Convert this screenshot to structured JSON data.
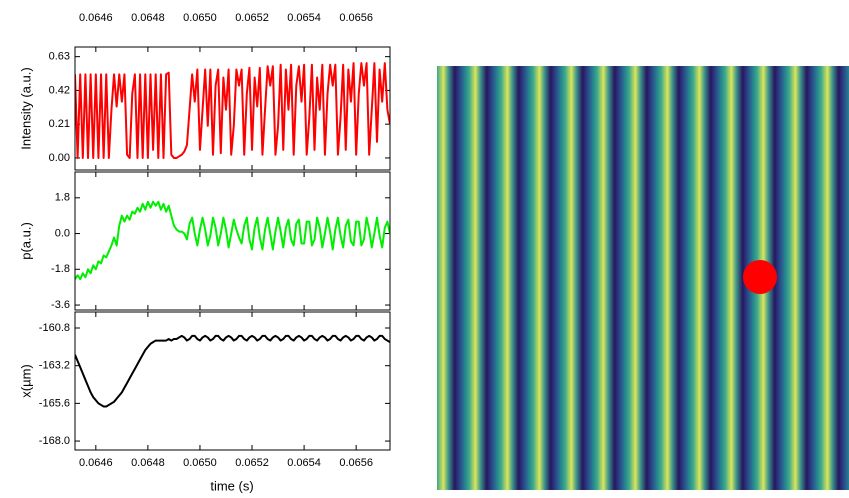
{
  "chart_data": {
    "type": "line",
    "x": [
      0.06452,
      0.06453,
      0.06454,
      0.06455,
      0.06456,
      0.06457,
      0.06458,
      0.06459,
      0.0646,
      0.06461,
      0.06462,
      0.06463,
      0.06464,
      0.06465,
      0.06466,
      0.06467,
      0.06468,
      0.06469,
      0.0647,
      0.06471,
      0.06472,
      0.06473,
      0.06474,
      0.06475,
      0.06476,
      0.06477,
      0.06478,
      0.06479,
      0.0648,
      0.06481,
      0.06482,
      0.06483,
      0.06484,
      0.06485,
      0.06486,
      0.06487,
      0.06488,
      0.06489,
      0.0649,
      0.06491,
      0.06492,
      0.06493,
      0.06494,
      0.06495,
      0.06496,
      0.06497,
      0.06498,
      0.06499,
      0.065,
      0.06501,
      0.06502,
      0.06503,
      0.06504,
      0.06505,
      0.06506,
      0.06507,
      0.06508,
      0.06509,
      0.0651,
      0.06511,
      0.06512,
      0.06513,
      0.06514,
      0.06515,
      0.06516,
      0.06517,
      0.06518,
      0.06519,
      0.0652,
      0.06521,
      0.06522,
      0.06523,
      0.06524,
      0.06525,
      0.06526,
      0.06527,
      0.06528,
      0.06529,
      0.0653,
      0.06531,
      0.06532,
      0.06533,
      0.06534,
      0.06535,
      0.06536,
      0.06537,
      0.06538,
      0.06539,
      0.0654,
      0.06541,
      0.06542,
      0.06543,
      0.06544,
      0.06545,
      0.06546,
      0.06547,
      0.06548,
      0.06549,
      0.0655,
      0.06551,
      0.06552,
      0.06553,
      0.06554,
      0.06555,
      0.06556,
      0.06557,
      0.06558,
      0.06559,
      0.0656,
      0.06561,
      0.06562,
      0.06563,
      0.06564,
      0.06565,
      0.06566,
      0.06567,
      0.06568,
      0.06569,
      0.0657,
      0.06571,
      0.06572,
      0.06573
    ],
    "xlim": [
      0.06452,
      0.06573
    ],
    "xticks": [
      0.0646,
      0.0648,
      {
        "value": 0.065,
        "label": "0.0650"
      },
      0.0652,
      0.0654,
      0.0656
    ],
    "xlabel": "time (s)",
    "panels": [
      {
        "ylabel": "Intensity (a.u.)",
        "ylim": [
          -0.075,
          0.69
        ],
        "yticks": [
          {
            "value": 0,
            "label": "0.00"
          },
          0.21,
          0.42,
          0.63
        ],
        "series": [
          {
            "color": "#ff0000",
            "values": [
              0.52,
              0.0,
              0.52,
              0.0,
              0.52,
              0.0,
              0.52,
              0.0,
              0.52,
              0.0,
              0.52,
              0.0,
              0.52,
              0.0,
              0.3,
              0.52,
              0.32,
              0.52,
              0.35,
              0.52,
              0.02,
              0.0,
              0.4,
              0.52,
              0.0,
              0.52,
              0.0,
              0.52,
              0.0,
              0.52,
              0.05,
              0.52,
              0.0,
              0.52,
              0.0,
              0.52,
              0.53,
              0.02,
              0.0,
              0.0,
              0.01,
              0.02,
              0.04,
              0.08,
              0.3,
              0.52,
              0.35,
              0.55,
              0.05,
              0.3,
              0.55,
              0.2,
              0.55,
              0.02,
              0.45,
              0.55,
              0.03,
              0.5,
              0.3,
              0.55,
              0.02,
              0.2,
              0.55,
              0.45,
              0.55,
              0.02,
              0.4,
              0.56,
              0.05,
              0.5,
              0.32,
              0.56,
              0.02,
              0.3,
              0.57,
              0.45,
              0.57,
              0.02,
              0.2,
              0.58,
              0.05,
              0.55,
              0.3,
              0.58,
              0.02,
              0.45,
              0.57,
              0.35,
              0.58,
              0.02,
              0.25,
              0.58,
              0.05,
              0.5,
              0.3,
              0.58,
              0.02,
              0.4,
              0.58,
              0.45,
              0.58,
              0.02,
              0.25,
              0.58,
              0.05,
              0.55,
              0.35,
              0.59,
              0.02,
              0.4,
              0.59,
              0.45,
              0.59,
              0.02,
              0.3,
              0.59,
              0.1,
              0.55,
              0.35,
              0.59,
              0.3,
              0.21
            ]
          }
        ]
      },
      {
        "ylabel": "p(a.u.)",
        "ylim": [
          -3.85,
          3.1
        ],
        "yticks": [
          -3.6,
          -1.8,
          {
            "value": 0,
            "label": "0.0"
          },
          1.8
        ],
        "series": [
          {
            "color": "#00ee00",
            "values": [
              -2.3,
              -2.1,
              -2.3,
              -2.0,
              -2.2,
              -1.8,
              -2.0,
              -1.6,
              -1.8,
              -1.4,
              -1.5,
              -1.1,
              -1.2,
              -0.9,
              -0.6,
              -0.2,
              -0.6,
              0.4,
              0.9,
              0.6,
              0.9,
              0.7,
              1.1,
              1.0,
              1.3,
              1.1,
              1.5,
              1.2,
              1.6,
              1.3,
              1.6,
              1.4,
              1.6,
              1.2,
              1.5,
              1.1,
              1.4,
              0.9,
              0.4,
              0.2,
              0.1,
              0.1,
              0.0,
              -0.3,
              0.5,
              0.8,
              0.0,
              -0.6,
              0.2,
              0.8,
              0.2,
              -0.6,
              -0.1,
              0.8,
              0.3,
              -0.6,
              0.0,
              0.8,
              0.2,
              -0.7,
              0.0,
              0.7,
              0.2,
              -0.2,
              -0.5,
              0.4,
              0.8,
              -0.3,
              -0.8,
              0.3,
              0.8,
              -0.2,
              -0.8,
              0.2,
              0.8,
              0.0,
              -0.8,
              0.1,
              0.8,
              0.1,
              -0.7,
              0.3,
              0.7,
              -0.3,
              -0.6,
              0.5,
              0.7,
              -0.5,
              -0.5,
              0.6,
              0.6,
              -0.6,
              -0.3,
              0.8,
              0.3,
              -0.7,
              0.0,
              0.8,
              0.1,
              -0.8,
              0.2,
              0.8,
              -0.1,
              -0.7,
              0.4,
              0.7,
              -0.4,
              -0.6,
              0.6,
              0.6,
              -0.6,
              -0.3,
              0.8,
              0.2,
              -0.7,
              0.0,
              0.8,
              -0.1,
              -0.7,
              0.3,
              0.6,
              0.0
            ]
          }
        ]
      },
      {
        "ylabel": "x(µm)",
        "ylim": [
          -168.57,
          -159.78
        ],
        "yticks": [
          {
            "value": -168,
            "label": "-168.0"
          },
          -165.6,
          -163.2,
          -160.8
        ],
        "series": [
          {
            "color": "#000000",
            "values": [
              -162.5,
              -162.9,
              -163.3,
              -163.7,
              -164.1,
              -164.5,
              -164.9,
              -165.2,
              -165.4,
              -165.6,
              -165.7,
              -165.8,
              -165.8,
              -165.7,
              -165.6,
              -165.5,
              -165.3,
              -165.1,
              -164.9,
              -164.6,
              -164.3,
              -164.0,
              -163.7,
              -163.4,
              -163.1,
              -162.8,
              -162.5,
              -162.2,
              -162.0,
              -161.8,
              -161.7,
              -161.6,
              -161.6,
              -161.6,
              -161.6,
              -161.6,
              -161.5,
              -161.6,
              -161.5,
              -161.5,
              -161.4,
              -161.3,
              -161.4,
              -161.6,
              -161.5,
              -161.3,
              -161.3,
              -161.5,
              -161.6,
              -161.4,
              -161.3,
              -161.4,
              -161.6,
              -161.5,
              -161.3,
              -161.3,
              -161.5,
              -161.6,
              -161.4,
              -161.3,
              -161.4,
              -161.6,
              -161.5,
              -161.3,
              -161.3,
              -161.5,
              -161.6,
              -161.4,
              -161.3,
              -161.4,
              -161.6,
              -161.5,
              -161.3,
              -161.3,
              -161.5,
              -161.6,
              -161.4,
              -161.3,
              -161.4,
              -161.6,
              -161.5,
              -161.3,
              -161.3,
              -161.5,
              -161.6,
              -161.4,
              -161.3,
              -161.4,
              -161.6,
              -161.5,
              -161.3,
              -161.3,
              -161.5,
              -161.6,
              -161.4,
              -161.3,
              -161.4,
              -161.6,
              -161.5,
              -161.3,
              -161.3,
              -161.5,
              -161.6,
              -161.4,
              -161.3,
              -161.4,
              -161.6,
              -161.5,
              -161.3,
              -161.3,
              -161.5,
              -161.6,
              -161.4,
              -161.3,
              -161.4,
              -161.6,
              -161.5,
              -161.3,
              -161.3,
              -161.5,
              -161.6,
              -161.7
            ]
          }
        ]
      }
    ]
  }
}
